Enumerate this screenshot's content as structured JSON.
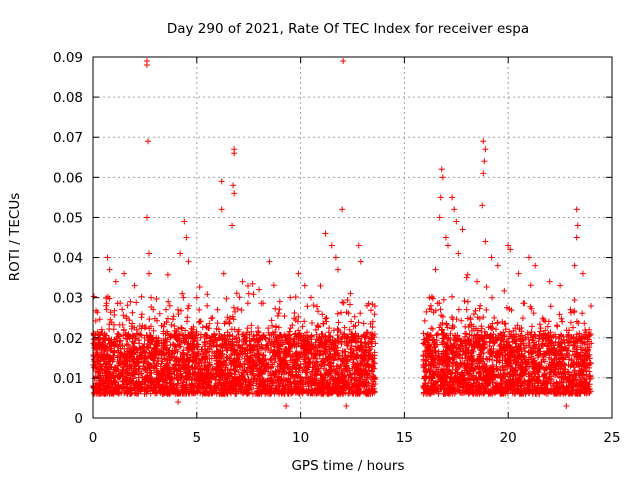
{
  "chart_data": {
    "type": "scatter",
    "title": "Day 290 of 2021, Rate Of TEC Index for receiver espa",
    "xlabel": "GPS time / hours",
    "ylabel": "ROTI / TECUs",
    "xlim": [
      0,
      25
    ],
    "ylim": [
      0,
      0.09
    ],
    "grid": true,
    "x_ticks": [
      0,
      5,
      10,
      15,
      20,
      25
    ],
    "y_ticks": [
      0,
      0.01,
      0.02,
      0.03,
      0.04,
      0.05,
      0.06,
      0.07,
      0.08,
      0.09
    ],
    "x_tick_labels": [
      "0",
      "5",
      "10",
      "15",
      "20",
      "25"
    ],
    "y_tick_labels": [
      "0",
      "0.01",
      "0.02",
      "0.03",
      "0.04",
      "0.05",
      "0.06",
      "0.07",
      "0.08",
      "0.09"
    ],
    "marker": "+",
    "series": [
      {
        "name": "ROTI",
        "color": "#ff0000",
        "segments": [
          [
            0.0,
            13.6
          ],
          [
            15.9,
            24.0
          ]
        ],
        "typical_range": [
          0.005,
          0.02
        ],
        "points": [
          {
            "x": 0.7,
            "y": 0.04
          },
          {
            "x": 0.8,
            "y": 0.037
          },
          {
            "x": 1.1,
            "y": 0.034
          },
          {
            "x": 1.5,
            "y": 0.036
          },
          {
            "x": 1.8,
            "y": 0.029
          },
          {
            "x": 2.0,
            "y": 0.033
          },
          {
            "x": 2.6,
            "y": 0.088
          },
          {
            "x": 2.6,
            "y": 0.089
          },
          {
            "x": 2.65,
            "y": 0.069
          },
          {
            "x": 2.6,
            "y": 0.05
          },
          {
            "x": 2.7,
            "y": 0.041
          },
          {
            "x": 2.7,
            "y": 0.036
          },
          {
            "x": 2.8,
            "y": 0.03
          },
          {
            "x": 3.3,
            "y": 0.023
          },
          {
            "x": 3.7,
            "y": 0.028
          },
          {
            "x": 4.2,
            "y": 0.041
          },
          {
            "x": 4.4,
            "y": 0.049
          },
          {
            "x": 4.5,
            "y": 0.045
          },
          {
            "x": 4.6,
            "y": 0.039
          },
          {
            "x": 4.3,
            "y": 0.031
          },
          {
            "x": 5.0,
            "y": 0.03
          },
          {
            "x": 5.5,
            "y": 0.028
          },
          {
            "x": 6.0,
            "y": 0.027
          },
          {
            "x": 6.2,
            "y": 0.059
          },
          {
            "x": 6.2,
            "y": 0.052
          },
          {
            "x": 6.8,
            "y": 0.067
          },
          {
            "x": 6.8,
            "y": 0.066
          },
          {
            "x": 6.75,
            "y": 0.058
          },
          {
            "x": 6.8,
            "y": 0.056
          },
          {
            "x": 6.7,
            "y": 0.048
          },
          {
            "x": 6.3,
            "y": 0.036
          },
          {
            "x": 7.2,
            "y": 0.034
          },
          {
            "x": 7.5,
            "y": 0.031
          },
          {
            "x": 8.0,
            "y": 0.032
          },
          {
            "x": 8.5,
            "y": 0.039
          },
          {
            "x": 9.0,
            "y": 0.029
          },
          {
            "x": 9.5,
            "y": 0.03
          },
          {
            "x": 9.9,
            "y": 0.036
          },
          {
            "x": 10.2,
            "y": 0.033
          },
          {
            "x": 10.5,
            "y": 0.03
          },
          {
            "x": 11.2,
            "y": 0.046
          },
          {
            "x": 11.5,
            "y": 0.043
          },
          {
            "x": 11.7,
            "y": 0.04
          },
          {
            "x": 11.8,
            "y": 0.037
          },
          {
            "x": 12.0,
            "y": 0.052
          },
          {
            "x": 12.05,
            "y": 0.089
          },
          {
            "x": 12.4,
            "y": 0.031
          },
          {
            "x": 12.8,
            "y": 0.043
          },
          {
            "x": 12.9,
            "y": 0.039
          },
          {
            "x": 13.2,
            "y": 0.028
          },
          {
            "x": 9.3,
            "y": 0.003
          },
          {
            "x": 4.1,
            "y": 0.004
          },
          {
            "x": 12.2,
            "y": 0.003
          },
          {
            "x": 16.2,
            "y": 0.03
          },
          {
            "x": 16.5,
            "y": 0.037
          },
          {
            "x": 16.8,
            "y": 0.062
          },
          {
            "x": 16.85,
            "y": 0.06
          },
          {
            "x": 16.75,
            "y": 0.055
          },
          {
            "x": 16.7,
            "y": 0.05
          },
          {
            "x": 17.0,
            "y": 0.045
          },
          {
            "x": 17.1,
            "y": 0.043
          },
          {
            "x": 17.3,
            "y": 0.055
          },
          {
            "x": 17.4,
            "y": 0.052
          },
          {
            "x": 17.5,
            "y": 0.049
          },
          {
            "x": 17.8,
            "y": 0.047
          },
          {
            "x": 17.6,
            "y": 0.041
          },
          {
            "x": 18.0,
            "y": 0.035
          },
          {
            "x": 18.5,
            "y": 0.034
          },
          {
            "x": 18.8,
            "y": 0.069
          },
          {
            "x": 18.9,
            "y": 0.067
          },
          {
            "x": 18.85,
            "y": 0.064
          },
          {
            "x": 18.8,
            "y": 0.061
          },
          {
            "x": 18.75,
            "y": 0.053
          },
          {
            "x": 18.9,
            "y": 0.044
          },
          {
            "x": 19.2,
            "y": 0.04
          },
          {
            "x": 19.5,
            "y": 0.038
          },
          {
            "x": 20.0,
            "y": 0.043
          },
          {
            "x": 20.1,
            "y": 0.042
          },
          {
            "x": 20.5,
            "y": 0.036
          },
          {
            "x": 21.0,
            "y": 0.04
          },
          {
            "x": 21.3,
            "y": 0.038
          },
          {
            "x": 22.0,
            "y": 0.034
          },
          {
            "x": 22.5,
            "y": 0.033
          },
          {
            "x": 23.3,
            "y": 0.052
          },
          {
            "x": 23.35,
            "y": 0.048
          },
          {
            "x": 23.3,
            "y": 0.045
          },
          {
            "x": 23.2,
            "y": 0.038
          },
          {
            "x": 23.6,
            "y": 0.036
          },
          {
            "x": 22.8,
            "y": 0.003
          },
          {
            "x": 23.0,
            "y": 0.027
          },
          {
            "x": 23.9,
            "y": 0.022
          }
        ]
      }
    ]
  }
}
